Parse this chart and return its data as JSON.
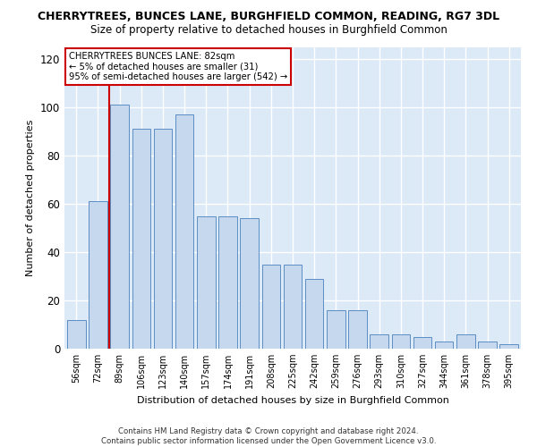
{
  "title": "CHERRYTREES, BUNCES LANE, BURGHFIELD COMMON, READING, RG7 3DL",
  "subtitle": "Size of property relative to detached houses in Burghfield Common",
  "xlabel": "Distribution of detached houses by size in Burghfield Common",
  "ylabel": "Number of detached properties",
  "categories": [
    "56sqm",
    "72sqm",
    "89sqm",
    "106sqm",
    "123sqm",
    "140sqm",
    "157sqm",
    "174sqm",
    "191sqm",
    "208sqm",
    "225sqm",
    "242sqm",
    "259sqm",
    "276sqm",
    "293sqm",
    "310sqm",
    "327sqm",
    "344sqm",
    "361sqm",
    "378sqm",
    "395sqm"
  ],
  "values": [
    12,
    61,
    101,
    91,
    91,
    97,
    55,
    55,
    54,
    35,
    35,
    29,
    16,
    16,
    6,
    6,
    5,
    3,
    6,
    3,
    2
  ],
  "bar_color": "#c5d8ee",
  "bar_edge_color": "#5b8ec4",
  "background_color": "#dce9f7",
  "grid_color": "#ffffff",
  "vline_x": 1.5,
  "vline_color": "#cc0000",
  "annotation_text": "CHERRYTREES BUNCES LANE: 82sqm\n← 5% of detached houses are smaller (31)\n95% of semi-detached houses are larger (542) →",
  "annotation_box_color": "#ffffff",
  "annotation_box_edge": "#cc0000",
  "ylim": [
    0,
    125
  ],
  "yticks": [
    0,
    20,
    40,
    60,
    80,
    100,
    120
  ],
  "footer1": "Contains HM Land Registry data © Crown copyright and database right 2024.",
  "footer2": "Contains public sector information licensed under the Open Government Licence v3.0."
}
